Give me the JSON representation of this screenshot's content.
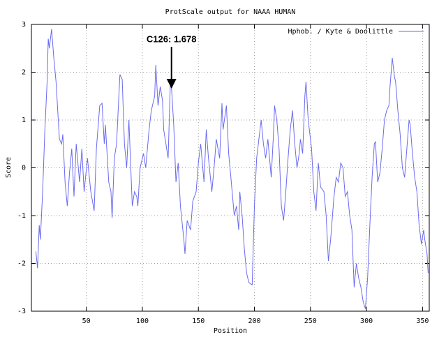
{
  "chart_data": {
    "type": "line",
    "title": "ProtScale output for NAAA HUMAN",
    "x_label": "Position",
    "y_label": "Score",
    "xlim": [
      1,
      356
    ],
    "ylim": [
      -3,
      3
    ],
    "xticks": [
      50,
      100,
      150,
      200,
      250,
      300,
      350
    ],
    "yticks": [
      -3,
      -2,
      -1,
      0,
      1,
      2,
      3
    ],
    "grid": true,
    "legend": "upper right",
    "annotation": {
      "text": "C126: 1.678",
      "x": 126,
      "y": 1.678
    },
    "x": [
      5,
      6.5,
      8,
      9,
      11,
      13,
      15,
      16,
      17,
      19,
      21,
      23,
      26,
      28,
      29,
      31,
      33,
      35,
      37,
      39,
      41,
      44,
      46,
      48,
      51,
      54,
      57,
      59,
      62,
      64,
      66,
      67,
      70,
      72,
      73,
      75,
      77,
      80,
      82,
      84,
      86,
      88,
      91,
      93,
      95,
      96,
      98,
      101,
      103,
      106,
      108,
      111,
      112,
      114,
      116,
      118,
      119,
      121,
      123,
      125,
      126,
      128,
      130,
      132,
      134,
      137,
      138,
      140,
      143,
      145,
      148,
      150,
      152,
      155,
      157,
      159,
      162,
      164,
      166,
      169,
      171,
      172,
      175,
      177,
      179,
      182,
      184,
      186,
      187,
      189,
      191,
      193,
      195,
      198,
      200,
      202,
      204,
      206,
      208,
      210,
      212,
      215,
      217,
      218,
      220,
      222,
      224,
      226,
      228,
      230,
      232,
      234,
      236,
      238,
      240,
      241,
      243,
      245,
      246,
      248,
      251,
      253,
      255,
      257,
      259,
      262,
      264,
      266,
      268,
      271,
      273,
      275,
      277,
      279,
      281,
      283,
      285,
      287,
      289,
      291,
      293,
      295,
      297,
      299,
      301,
      303,
      305,
      307,
      308,
      310,
      312,
      314,
      316,
      318,
      320,
      321,
      323,
      325,
      326,
      328,
      330,
      332,
      334,
      336,
      338,
      339,
      341,
      343,
      345,
      347,
      349,
      351,
      352,
      354,
      355
    ],
    "series": [
      {
        "name": "Hphob. / Kyte & Doolittle",
        "color": "#6a6af0",
        "values": [
          -1.75,
          -2.1,
          -1.2,
          -1.5,
          -0.5,
          0.8,
          1.8,
          2.7,
          2.5,
          2.9,
          2.3,
          1.8,
          0.6,
          0.5,
          0.7,
          -0.3,
          -0.8,
          -0.1,
          0.4,
          -0.6,
          0.5,
          -0.3,
          0.4,
          -0.5,
          0.2,
          -0.5,
          -0.9,
          0.4,
          1.3,
          1.35,
          0.5,
          0.9,
          -0.3,
          -0.5,
          -1.05,
          0.2,
          0.5,
          1.95,
          1.85,
          0.5,
          0.0,
          1.0,
          -0.8,
          -0.5,
          -0.6,
          -0.8,
          0.0,
          0.3,
          0.0,
          0.8,
          1.2,
          1.5,
          2.15,
          1.3,
          1.7,
          1.4,
          0.8,
          0.5,
          0.2,
          1.8,
          1.678,
          0.9,
          -0.3,
          0.1,
          -0.8,
          -1.5,
          -1.8,
          -1.1,
          -1.3,
          -0.7,
          -0.5,
          0.1,
          0.5,
          -0.3,
          0.8,
          0.2,
          -0.5,
          0.0,
          0.6,
          0.2,
          1.35,
          0.8,
          1.3,
          0.3,
          -0.2,
          -1.0,
          -0.8,
          -1.3,
          -0.5,
          -1.0,
          -1.7,
          -2.2,
          -2.4,
          -2.45,
          -0.8,
          0.2,
          0.6,
          1.0,
          0.5,
          0.2,
          0.6,
          -0.2,
          0.7,
          1.3,
          1.0,
          0.4,
          -0.8,
          -1.1,
          -0.5,
          0.2,
          0.8,
          1.2,
          0.5,
          0.0,
          0.3,
          0.6,
          0.3,
          1.5,
          1.8,
          1.0,
          0.4,
          -0.5,
          -0.9,
          0.1,
          -0.4,
          -0.5,
          -1.0,
          -1.95,
          -1.5,
          -0.6,
          -0.2,
          -0.3,
          0.1,
          0.0,
          -0.6,
          -0.5,
          -1.0,
          -1.3,
          -2.5,
          -2.0,
          -2.3,
          -2.5,
          -2.8,
          -2.95,
          -2.3,
          -1.2,
          -0.2,
          0.5,
          0.55,
          -0.3,
          -0.1,
          0.4,
          1.0,
          1.2,
          1.3,
          1.7,
          2.3,
          1.9,
          1.8,
          1.2,
          0.7,
          0.0,
          -0.2,
          0.4,
          1.0,
          0.9,
          0.3,
          -0.2,
          -0.5,
          -1.2,
          -1.6,
          -1.3,
          -1.5,
          -1.8,
          -2.2
        ]
      }
    ]
  }
}
